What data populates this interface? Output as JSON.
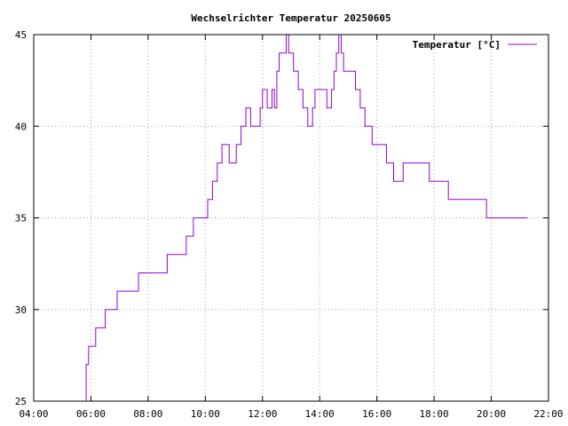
{
  "chart_data": {
    "type": "line",
    "title": "Wechselrichter Temperatur 20250605",
    "xlabel": "",
    "ylabel": "",
    "x_ticks": [
      "04:00",
      "06:00",
      "08:00",
      "10:00",
      "12:00",
      "14:00",
      "16:00",
      "18:00",
      "20:00",
      "22:00"
    ],
    "y_ticks": [
      "25",
      "30",
      "35",
      "40",
      "45"
    ],
    "xlim": [
      "04:00",
      "22:00"
    ],
    "ylim": [
      25,
      45
    ],
    "grid": true,
    "legend_position": "top-right",
    "line_style": "steps",
    "series": [
      {
        "name": "Temperatur [°C]",
        "color": "#9400d3",
        "points": [
          [
            "05:45",
            25
          ],
          [
            "05:50",
            27
          ],
          [
            "05:55",
            28
          ],
          [
            "06:10",
            29
          ],
          [
            "06:30",
            30
          ],
          [
            "06:55",
            31
          ],
          [
            "07:40",
            32
          ],
          [
            "08:40",
            33
          ],
          [
            "09:20",
            34
          ],
          [
            "09:35",
            35
          ],
          [
            "10:05",
            36
          ],
          [
            "10:15",
            37
          ],
          [
            "10:25",
            38
          ],
          [
            "10:35",
            39
          ],
          [
            "10:50",
            38
          ],
          [
            "11:05",
            39
          ],
          [
            "11:15",
            40
          ],
          [
            "11:25",
            41
          ],
          [
            "11:35",
            40
          ],
          [
            "11:55",
            41
          ],
          [
            "12:00",
            42
          ],
          [
            "12:10",
            41
          ],
          [
            "12:20",
            42
          ],
          [
            "12:25",
            41
          ],
          [
            "12:30",
            43
          ],
          [
            "12:35",
            44
          ],
          [
            "12:50",
            45
          ],
          [
            "12:55",
            44
          ],
          [
            "13:05",
            43
          ],
          [
            "13:15",
            42
          ],
          [
            "13:25",
            41
          ],
          [
            "13:35",
            40
          ],
          [
            "13:45",
            41
          ],
          [
            "13:50",
            42
          ],
          [
            "14:15",
            41
          ],
          [
            "14:25",
            42
          ],
          [
            "14:30",
            43
          ],
          [
            "14:35",
            44
          ],
          [
            "14:40",
            45
          ],
          [
            "14:45",
            44
          ],
          [
            "14:50",
            43
          ],
          [
            "15:15",
            42
          ],
          [
            "15:25",
            41
          ],
          [
            "15:35",
            40
          ],
          [
            "15:50",
            39
          ],
          [
            "16:20",
            38
          ],
          [
            "16:35",
            37
          ],
          [
            "16:55",
            38
          ],
          [
            "17:50",
            37
          ],
          [
            "18:30",
            36
          ],
          [
            "19:50",
            35
          ],
          [
            "21:15",
            35
          ]
        ]
      }
    ]
  }
}
